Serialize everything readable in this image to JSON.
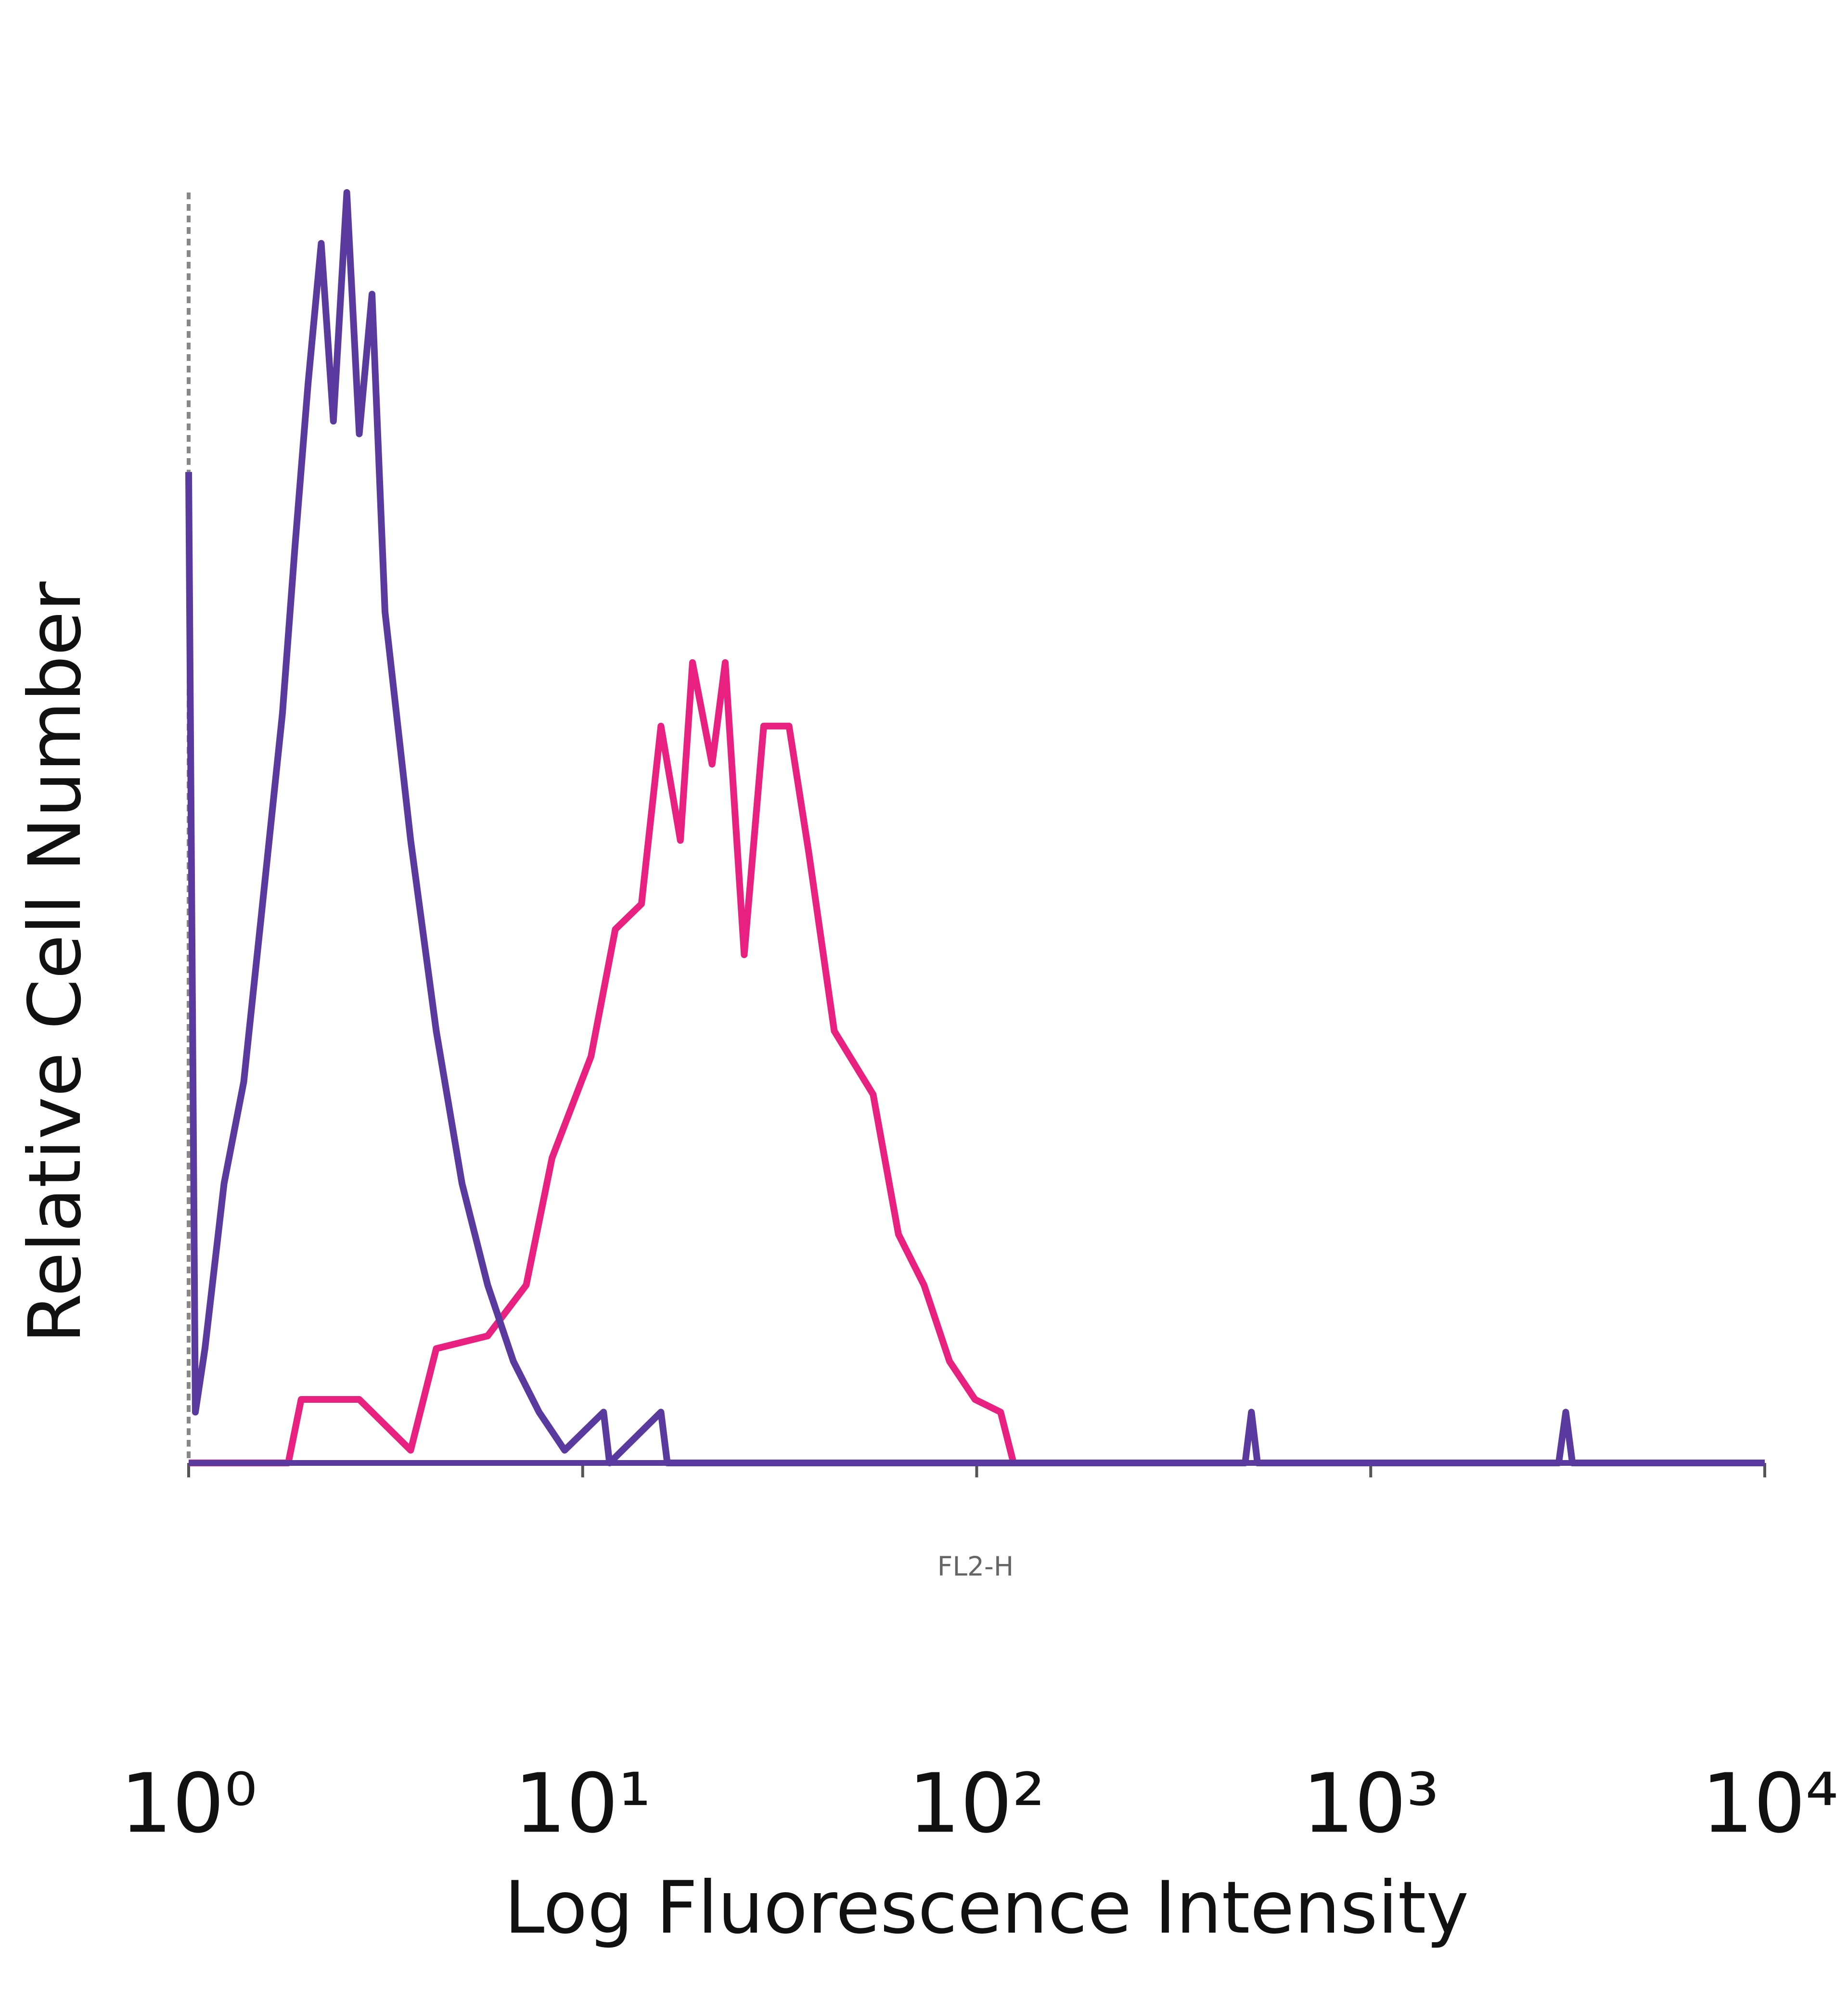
{
  "chart_data": {
    "type": "line",
    "x_label": "Log Fluorescence Intensity",
    "y_label": "Relative Cell Number",
    "annotation": "FL2-H",
    "log_x": true,
    "grid": false,
    "xlim": [
      1,
      10000
    ],
    "ylim": [
      0,
      100
    ],
    "xticks": [
      {
        "value": 1,
        "label": "10⁰"
      },
      {
        "value": 10,
        "label": "10¹"
      },
      {
        "value": 100,
        "label": "10²"
      },
      {
        "value": 1000,
        "label": "10³"
      },
      {
        "value": 10000,
        "label": "10⁴"
      }
    ],
    "series": [
      {
        "color": "#e8207f",
        "x": [
          1,
          1.79,
          1.93,
          2.71,
          3.66,
          4.25,
          5.74,
          7.19,
          8.36,
          10.5,
          12.1,
          14.1,
          15.8,
          17.7,
          19.0,
          21.3,
          23.0,
          25.7,
          28.8,
          33.4,
          37.5,
          43.5,
          54.6,
          63.3,
          73.5,
          85.3,
          99,
          115,
          124
        ],
        "values": [
          0,
          0,
          5,
          5,
          1,
          9,
          10,
          14,
          24,
          32,
          42,
          44,
          58,
          49,
          63,
          55,
          63,
          40,
          58,
          58,
          48,
          34,
          29,
          18,
          14,
          8,
          5,
          4,
          0
        ]
      },
      {
        "color": "#5b3aa0",
        "x": [
          1,
          1.04,
          1.1,
          1.23,
          1.38,
          1.54,
          1.73,
          1.86,
          2.01,
          2.17,
          2.33,
          2.52,
          2.71,
          2.92,
          3.15,
          3.66,
          4.25,
          4.94,
          5.74,
          6.67,
          7.75,
          9.0,
          11.3,
          11.7,
          15.8,
          16.4,
          480,
          498,
          516,
          3000,
          3126,
          3250,
          10000
        ],
        "values": [
          78,
          4,
          9,
          22,
          30,
          44,
          59,
          72,
          85,
          96,
          82,
          100,
          81,
          92,
          67,
          49,
          34,
          22,
          14,
          8,
          4,
          1,
          4,
          0,
          4,
          0,
          0,
          4,
          0,
          0,
          4,
          0,
          0
        ]
      }
    ]
  }
}
